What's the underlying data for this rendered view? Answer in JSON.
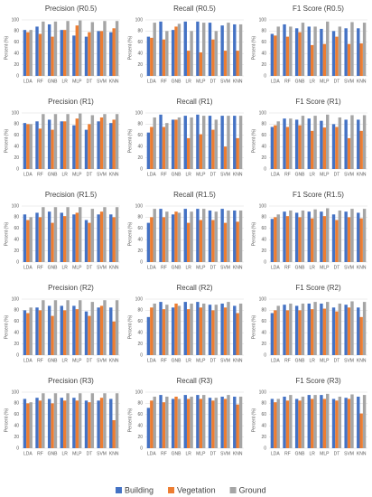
{
  "chart_data": [
    {
      "type": "bar",
      "title": "Precision (R0.5)",
      "ylabel": "Percent (%)",
      "categories": [
        "LDA",
        "RF",
        "GNB",
        "LR",
        "MLP",
        "DT",
        "SVM",
        "KNN"
      ],
      "ylim": [
        0,
        100
      ],
      "yticks": [
        0,
        20,
        40,
        60,
        80,
        100
      ],
      "grid": true,
      "series": [
        {
          "name": "Building",
          "color": "#4472c4",
          "values": [
            82,
            88,
            92,
            82,
            72,
            70,
            80,
            78
          ]
        },
        {
          "name": "Vegetation",
          "color": "#ed7d31",
          "values": [
            78,
            75,
            70,
            82,
            90,
            78,
            80,
            85
          ]
        },
        {
          "name": "Ground",
          "color": "#a5a5a5",
          "values": [
            82,
            97,
            97,
            98,
            99,
            96,
            98,
            98
          ]
        }
      ]
    },
    {
      "type": "bar",
      "title": "Recall (R0.5)",
      "ylabel": "Percent (%)",
      "categories": [
        "LDA",
        "RF",
        "GNB",
        "LR",
        "MLP",
        "DT",
        "SVM",
        "KNN"
      ],
      "ylim": [
        0,
        100
      ],
      "yticks": [
        0,
        20,
        40,
        60,
        80,
        100
      ],
      "grid": true,
      "series": [
        {
          "name": "Building",
          "color": "#4472c4",
          "values": [
            70,
            97,
            82,
            97,
            97,
            95,
            90,
            92
          ]
        },
        {
          "name": "Vegetation",
          "color": "#ed7d31",
          "values": [
            68,
            65,
            88,
            45,
            42,
            65,
            45,
            45
          ]
        },
        {
          "name": "Ground",
          "color": "#a5a5a5",
          "values": [
            95,
            80,
            93,
            80,
            95,
            80,
            95,
            92
          ]
        }
      ]
    },
    {
      "type": "bar",
      "title": "F1 Score (R0.5)",
      "ylabel": "Percent (%)",
      "categories": [
        "LDA",
        "RF",
        "GNB",
        "LR",
        "MLP",
        "DT",
        "SVM",
        "KNN"
      ],
      "ylim": [
        0,
        100
      ],
      "yticks": [
        0,
        20,
        40,
        60,
        80,
        100
      ],
      "grid": true,
      "series": [
        {
          "name": "Building",
          "color": "#4472c4",
          "values": [
            75,
            92,
            85,
            88,
            84,
            80,
            85,
            85
          ]
        },
        {
          "name": "Vegetation",
          "color": "#ed7d31",
          "values": [
            72,
            70,
            78,
            55,
            57,
            70,
            57,
            58
          ]
        },
        {
          "name": "Ground",
          "color": "#a5a5a5",
          "values": [
            88,
            88,
            95,
            88,
            97,
            88,
            96,
            95
          ]
        }
      ]
    },
    {
      "type": "bar",
      "title": "Precision (R1)",
      "ylabel": "Percent (%)",
      "categories": [
        "LDA",
        "RF",
        "GNB",
        "LR",
        "MLP",
        "DT",
        "SVM",
        "KNN"
      ],
      "ylim": [
        0,
        100
      ],
      "yticks": [
        0,
        20,
        40,
        60,
        80,
        100
      ],
      "grid": true,
      "series": [
        {
          "name": "Building",
          "color": "#4472c4",
          "values": [
            82,
            85,
            88,
            85,
            78,
            70,
            85,
            82
          ]
        },
        {
          "name": "Vegetation",
          "color": "#ed7d31",
          "values": [
            80,
            72,
            70,
            85,
            90,
            80,
            92,
            88
          ]
        },
        {
          "name": "Ground",
          "color": "#a5a5a5",
          "values": [
            80,
            98,
            98,
            98,
            99,
            96,
            98,
            98
          ]
        }
      ]
    },
    {
      "type": "bar",
      "title": "Recall (R1)",
      "ylabel": "Percent (%)",
      "categories": [
        "LDA",
        "RF",
        "GNB",
        "LR",
        "MLP",
        "DT",
        "SVM",
        "KNN"
      ],
      "ylim": [
        0,
        100
      ],
      "yticks": [
        0,
        20,
        40,
        60,
        80,
        100
      ],
      "grid": true,
      "series": [
        {
          "name": "Building",
          "color": "#4472c4",
          "values": [
            65,
            97,
            88,
            95,
            97,
            95,
            95,
            95
          ]
        },
        {
          "name": "Vegetation",
          "color": "#ed7d31",
          "values": [
            75,
            75,
            88,
            55,
            62,
            70,
            40,
            55
          ]
        },
        {
          "name": "Ground",
          "color": "#a5a5a5",
          "values": [
            92,
            82,
            92,
            92,
            95,
            88,
            95,
            95
          ]
        }
      ]
    },
    {
      "type": "bar",
      "title": "F1 Score (R1)",
      "ylabel": "Percent (%)",
      "categories": [
        "LDA",
        "RF",
        "GNB",
        "LR",
        "MLP",
        "DT",
        "SVM",
        "KNN"
      ],
      "ylim": [
        0,
        100
      ],
      "yticks": [
        0,
        20,
        40,
        60,
        80,
        100
      ],
      "grid": true,
      "series": [
        {
          "name": "Building",
          "color": "#4472c4",
          "values": [
            75,
            90,
            88,
            90,
            86,
            80,
            88,
            88
          ]
        },
        {
          "name": "Vegetation",
          "color": "#ed7d31",
          "values": [
            78,
            75,
            78,
            68,
            74,
            75,
            55,
            68
          ]
        },
        {
          "name": "Ground",
          "color": "#a5a5a5",
          "values": [
            85,
            90,
            95,
            95,
            97,
            92,
            96,
            96
          ]
        }
      ]
    },
    {
      "type": "bar",
      "title": "Precision (R1.5)",
      "ylabel": "Percent (%)",
      "categories": [
        "LDA",
        "RF",
        "GNB",
        "LR",
        "MLP",
        "DT",
        "SVM",
        "KNN"
      ],
      "ylim": [
        0,
        100
      ],
      "yticks": [
        0,
        20,
        40,
        60,
        80,
        100
      ],
      "grid": true,
      "series": [
        {
          "name": "Building",
          "color": "#4472c4",
          "values": [
            85,
            88,
            90,
            88,
            85,
            75,
            85,
            85
          ]
        },
        {
          "name": "Vegetation",
          "color": "#ed7d31",
          "values": [
            75,
            80,
            70,
            82,
            88,
            70,
            90,
            80
          ]
        },
        {
          "name": "Ground",
          "color": "#a5a5a5",
          "values": [
            80,
            98,
            98,
            98,
            98,
            95,
            98,
            98
          ]
        }
      ]
    },
    {
      "type": "bar",
      "title": "Recall (R1.5)",
      "ylabel": "Percent (%)",
      "categories": [
        "LDA",
        "RF",
        "GNB",
        "LR",
        "MLP",
        "DT",
        "SVM",
        "KNN"
      ],
      "ylim": [
        0,
        100
      ],
      "yticks": [
        0,
        20,
        40,
        60,
        80,
        100
      ],
      "grid": true,
      "series": [
        {
          "name": "Building",
          "color": "#4472c4",
          "values": [
            70,
            95,
            85,
            95,
            95,
            92,
            95,
            92
          ]
        },
        {
          "name": "Vegetation",
          "color": "#ed7d31",
          "values": [
            80,
            80,
            90,
            70,
            75,
            75,
            70,
            72
          ]
        },
        {
          "name": "Ground",
          "color": "#a5a5a5",
          "values": [
            95,
            90,
            88,
            90,
            95,
            90,
            92,
            92
          ]
        }
      ]
    },
    {
      "type": "bar",
      "title": "F1 Score (R1.5)",
      "ylabel": "Percent (%)",
      "categories": [
        "LDA",
        "RF",
        "GNB",
        "LR",
        "MLP",
        "DT",
        "SVM",
        "KNN"
      ],
      "ylim": [
        0,
        100
      ],
      "yticks": [
        0,
        20,
        40,
        60,
        80,
        100
      ],
      "grid": true,
      "series": [
        {
          "name": "Building",
          "color": "#4472c4",
          "values": [
            77,
            90,
            88,
            90,
            90,
            85,
            90,
            88
          ]
        },
        {
          "name": "Vegetation",
          "color": "#ed7d31",
          "values": [
            80,
            82,
            80,
            78,
            82,
            75,
            80,
            78
          ]
        },
        {
          "name": "Ground",
          "color": "#a5a5a5",
          "values": [
            85,
            92,
            92,
            94,
            96,
            92,
            95,
            95
          ]
        }
      ]
    },
    {
      "type": "bar",
      "title": "Precision (R2)",
      "ylabel": "Percent (%)",
      "categories": [
        "LDA",
        "RF",
        "GNB",
        "LR",
        "MLP",
        "DT",
        "SVM",
        "KNN"
      ],
      "ylim": [
        0,
        100
      ],
      "yticks": [
        0,
        20,
        40,
        60,
        80,
        100
      ],
      "grid": true,
      "series": [
        {
          "name": "Building",
          "color": "#4472c4",
          "values": [
            80,
            85,
            88,
            88,
            88,
            78,
            85,
            85
          ]
        },
        {
          "name": "Vegetation",
          "color": "#ed7d31",
          "values": [
            75,
            80,
            70,
            80,
            82,
            70,
            88,
            60
          ]
        },
        {
          "name": "Ground",
          "color": "#a5a5a5",
          "values": [
            85,
            98,
            98,
            98,
            98,
            95,
            98,
            98
          ]
        }
      ]
    },
    {
      "type": "bar",
      "title": "Recall (R2)",
      "ylabel": "Percent (%)",
      "categories": [
        "LDA",
        "RF",
        "GNB",
        "LR",
        "MLP",
        "DT",
        "SVM",
        "KNN"
      ],
      "ylim": [
        0,
        100
      ],
      "yticks": [
        0,
        20,
        40,
        60,
        80,
        100
      ],
      "grid": true,
      "series": [
        {
          "name": "Building",
          "color": "#4472c4",
          "values": [
            68,
            95,
            85,
            95,
            95,
            90,
            92,
            88
          ]
        },
        {
          "name": "Vegetation",
          "color": "#ed7d31",
          "values": [
            85,
            82,
            92,
            82,
            85,
            80,
            85,
            75
          ]
        },
        {
          "name": "Ground",
          "color": "#a5a5a5",
          "values": [
            92,
            90,
            88,
            92,
            92,
            90,
            95,
            92
          ]
        }
      ]
    },
    {
      "type": "bar",
      "title": "F1 Score (R2)",
      "ylabel": "Percent (%)",
      "categories": [
        "LDA",
        "RF",
        "GNB",
        "LR",
        "MLP",
        "DT",
        "SVM",
        "KNN"
      ],
      "ylim": [
        0,
        100
      ],
      "yticks": [
        0,
        20,
        40,
        60,
        80,
        100
      ],
      "grid": true,
      "series": [
        {
          "name": "Building",
          "color": "#4472c4",
          "values": [
            75,
            90,
            88,
            92,
            92,
            85,
            90,
            85
          ]
        },
        {
          "name": "Vegetation",
          "color": "#ed7d31",
          "values": [
            80,
            80,
            80,
            82,
            83,
            78,
            85,
            68
          ]
        },
        {
          "name": "Ground",
          "color": "#a5a5a5",
          "values": [
            88,
            92,
            92,
            95,
            95,
            92,
            96,
            95
          ]
        }
      ]
    },
    {
      "type": "bar",
      "title": "Precision (R3)",
      "ylabel": "Percent (%)",
      "categories": [
        "LDA",
        "RF",
        "GNB",
        "LR",
        "MLP",
        "DT",
        "SVM",
        "KNN"
      ],
      "ylim": [
        0,
        100
      ],
      "yticks": [
        0,
        20,
        40,
        60,
        80,
        100
      ],
      "grid": true,
      "series": [
        {
          "name": "Building",
          "color": "#4472c4",
          "values": [
            88,
            90,
            88,
            90,
            90,
            85,
            85,
            88
          ]
        },
        {
          "name": "Vegetation",
          "color": "#ed7d31",
          "values": [
            80,
            85,
            80,
            85,
            85,
            82,
            90,
            50
          ]
        },
        {
          "name": "Ground",
          "color": "#a5a5a5",
          "values": [
            82,
            98,
            98,
            98,
            98,
            98,
            98,
            98
          ]
        }
      ]
    },
    {
      "type": "bar",
      "title": "Recall (R3)",
      "ylabel": "Percent (%)",
      "categories": [
        "LDA",
        "RF",
        "GNB",
        "LR",
        "MLP",
        "DT",
        "SVM",
        "KNN"
      ],
      "ylim": [
        0,
        100
      ],
      "yticks": [
        0,
        20,
        40,
        60,
        80,
        100
      ],
      "grid": true,
      "series": [
        {
          "name": "Building",
          "color": "#4472c4",
          "values": [
            72,
            95,
            88,
            95,
            95,
            90,
            92,
            92
          ]
        },
        {
          "name": "Vegetation",
          "color": "#ed7d31",
          "values": [
            85,
            82,
            92,
            88,
            88,
            85,
            88,
            78
          ]
        },
        {
          "name": "Ground",
          "color": "#a5a5a5",
          "values": [
            92,
            92,
            88,
            92,
            95,
            90,
            95,
            92
          ]
        }
      ]
    },
    {
      "type": "bar",
      "title": "F1 Score (R3)",
      "ylabel": "Percent (%)",
      "categories": [
        "LDA",
        "RF",
        "GNB",
        "LR",
        "MLP",
        "DT",
        "SVM",
        "KNN"
      ],
      "ylim": [
        0,
        100
      ],
      "yticks": [
        0,
        20,
        40,
        60,
        80,
        100
      ],
      "grid": true,
      "series": [
        {
          "name": "Building",
          "color": "#4472c4",
          "values": [
            88,
            92,
            88,
            95,
            95,
            88,
            90,
            92
          ]
        },
        {
          "name": "Vegetation",
          "color": "#ed7d31",
          "values": [
            82,
            85,
            85,
            88,
            88,
            85,
            88,
            62
          ]
        },
        {
          "name": "Ground",
          "color": "#a5a5a5",
          "values": [
            88,
            95,
            92,
            95,
            97,
            92,
            96,
            95
          ]
        }
      ]
    }
  ]
}
